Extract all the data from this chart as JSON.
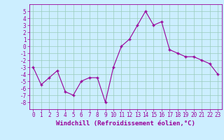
{
  "x": [
    0,
    1,
    2,
    3,
    4,
    5,
    6,
    7,
    8,
    9,
    10,
    11,
    12,
    13,
    14,
    15,
    16,
    17,
    18,
    19,
    20,
    21,
    22,
    23
  ],
  "y": [
    -3,
    -5.5,
    -4.5,
    -3.5,
    -6.5,
    -7,
    -5,
    -4.5,
    -4.5,
    -8,
    -3,
    0,
    1,
    3,
    5,
    3,
    3.5,
    -0.5,
    -1,
    -1.5,
    -1.5,
    -2,
    -2.5,
    -4
  ],
  "line_color": "#990099",
  "marker": "+",
  "bg_color": "#cceeff",
  "grid_color": "#99ccbb",
  "xlabel": "Windchill (Refroidissement éolien,°C)",
  "xlabel_color": "#990099",
  "tick_color": "#990099",
  "spine_color": "#990099",
  "ylim": [
    -9,
    6
  ],
  "xlim": [
    -0.5,
    23.5
  ],
  "yticks": [
    -8,
    -7,
    -6,
    -5,
    -4,
    -3,
    -2,
    -1,
    0,
    1,
    2,
    3,
    4,
    5
  ],
  "xticks": [
    0,
    1,
    2,
    3,
    4,
    5,
    6,
    7,
    8,
    9,
    10,
    11,
    12,
    13,
    14,
    15,
    16,
    17,
    18,
    19,
    20,
    21,
    22,
    23
  ],
  "fontsize_ticks": 5.5,
  "fontsize_xlabel": 6.5,
  "linewidth": 0.8,
  "markersize": 3,
  "markeredgewidth": 1.0
}
